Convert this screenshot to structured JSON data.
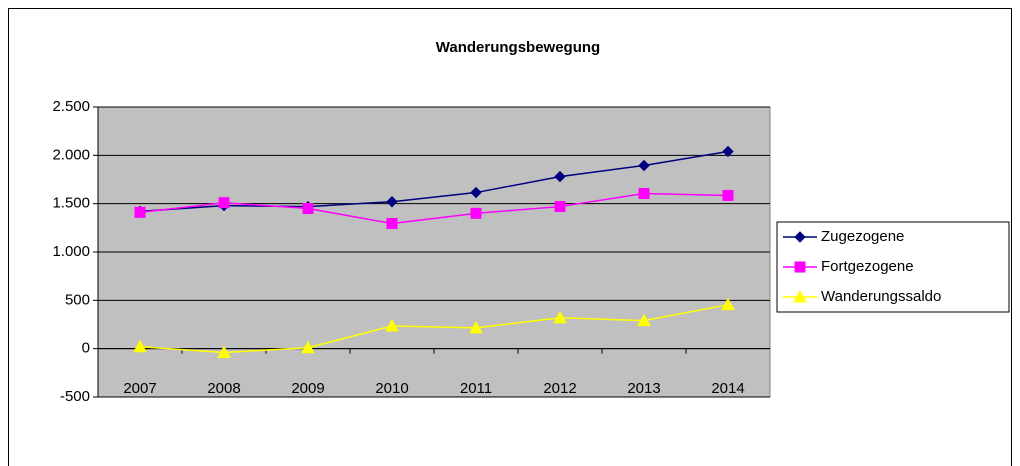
{
  "chart_data": {
    "type": "line",
    "title": "Wanderungsbewegung",
    "categories": [
      "2007",
      "2008",
      "2009",
      "2010",
      "2011",
      "2012",
      "2013",
      "2014"
    ],
    "series": [
      {
        "name": "Zugezogene",
        "color": "#000080",
        "marker": "diamond",
        "values": [
          1420,
          1480,
          1470,
          1520,
          1615,
          1780,
          1895,
          2040
        ]
      },
      {
        "name": "Fortgezogene",
        "color": "#ff00ff",
        "marker": "square",
        "values": [
          1410,
          1510,
          1450,
          1295,
          1400,
          1470,
          1605,
          1585
        ]
      },
      {
        "name": "Wanderungssaldo",
        "color": "#ffff00",
        "marker": "triangle",
        "values": [
          20,
          -40,
          10,
          235,
          215,
          320,
          290,
          455
        ]
      }
    ],
    "ylim": [
      -500,
      2500
    ],
    "yticks": [
      -500,
      0,
      500,
      {
        "value": 1000,
        "label": "1.000"
      },
      {
        "value": 1500,
        "label": "1.500"
      },
      {
        "value": 2000,
        "label": "2.000"
      },
      {
        "value": 2500,
        "label": "2.500"
      }
    ],
    "grid": true,
    "legend": "right",
    "plot_background": "#c0c0c0"
  }
}
